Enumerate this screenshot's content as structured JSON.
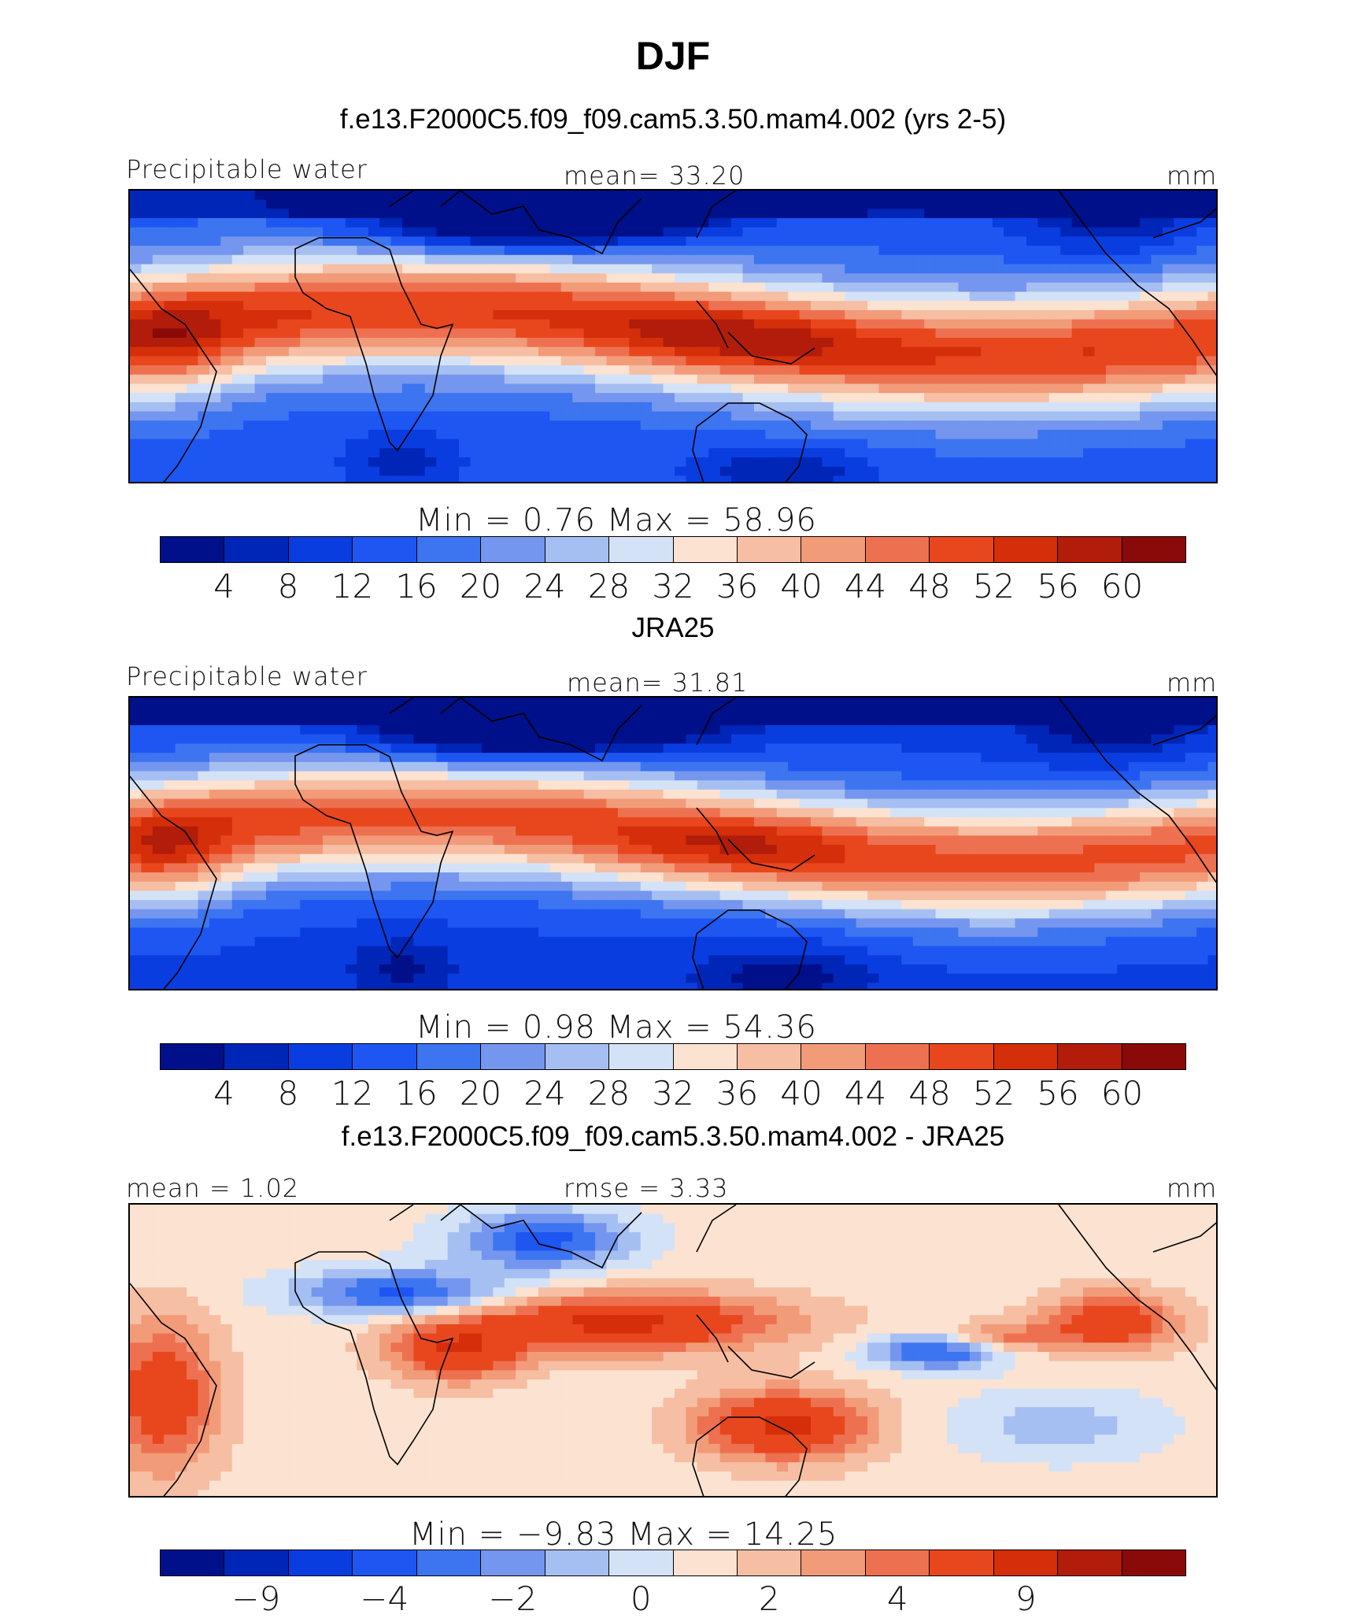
{
  "main_title": "DJF",
  "palette": [
    "#00108a",
    "#0026b8",
    "#0a3de0",
    "#1e56f2",
    "#3d74f0",
    "#7596ee",
    "#a6bff2",
    "#d4e2f7",
    "#fbe2d1",
    "#f6bea2",
    "#f29b79",
    "#ed7150",
    "#e8471e",
    "#d42e0a",
    "#b21c0a",
    "#8a0a0a"
  ],
  "chart_data": [
    {
      "type": "heatmap",
      "title": "f.e13.F2000C5.f09_f09.cam5.3.50.mam4.002 (yrs 2-5)",
      "left_label": "Precipitable water",
      "center_label": "mean=   33.20",
      "units": "mm",
      "min": 0.76,
      "max": 58.96,
      "minmax_text": "Min  =     0.76  Max  =    58.96",
      "colorbar_levels": [
        "4",
        "8",
        "12",
        "16",
        "20",
        "24",
        "28",
        "32",
        "36",
        "40",
        "44",
        "48",
        "52",
        "56",
        "60"
      ],
      "colorbar_range": [
        0,
        64
      ],
      "field": "model"
    },
    {
      "type": "heatmap",
      "title": "JRA25",
      "left_label": "Precipitable water",
      "center_label": "mean=   31.81",
      "units": "mm",
      "min": 0.98,
      "max": 54.36,
      "minmax_text": "Min  =     0.98  Max  =    54.36",
      "colorbar_levels": [
        "4",
        "8",
        "12",
        "16",
        "20",
        "24",
        "28",
        "32",
        "36",
        "40",
        "44",
        "48",
        "52",
        "56",
        "60"
      ],
      "colorbar_range": [
        0,
        64
      ],
      "field": "obs"
    },
    {
      "type": "heatmap",
      "title": "f.e13.F2000C5.f09_f09.cam5.3.50.mam4.002 - JRA25",
      "left_label": "mean  =    1.02",
      "center_label": "rmse  =    3.33",
      "units": "mm",
      "min": -9.83,
      "max": 14.25,
      "minmax_text": "Min  =   −9.83  Max  =   14.25",
      "colorbar_levels": [
        "−9",
        "",
        "−4",
        "",
        "−2",
        "",
        "0",
        "",
        "2",
        "",
        "4",
        "",
        "9"
      ],
      "colorbar_level_values": [
        -9,
        -6,
        -4,
        -3,
        -2,
        -1,
        0,
        1,
        2,
        3,
        4,
        6,
        9
      ],
      "field": "diff"
    }
  ]
}
